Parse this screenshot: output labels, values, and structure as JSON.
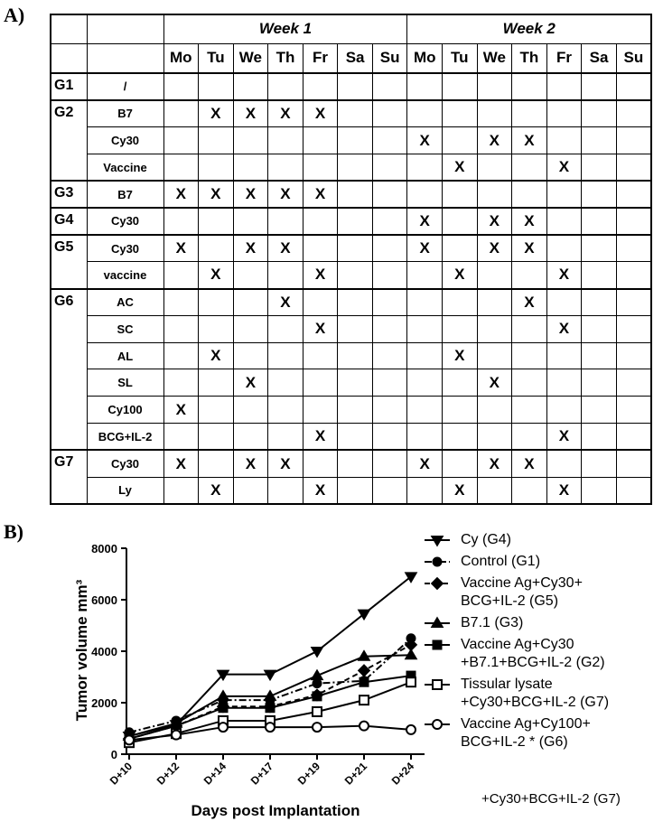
{
  "panel_labels": [
    "A)",
    "B)"
  ],
  "table": {
    "weeks": [
      {
        "label": "Week 1",
        "days": [
          "Mo",
          "Tu",
          "We",
          "Th",
          "Fr",
          "Sa",
          "Su"
        ]
      },
      {
        "label": "Week 2",
        "days": [
          "Mo",
          "Tu",
          "We",
          "Th",
          "Fr",
          "Sa",
          "Su"
        ]
      }
    ],
    "mark_symbol": "X",
    "groups": [
      {
        "label": "G1",
        "rows": [
          {
            "treatment": "/",
            "marks": [
              [],
              []
            ]
          }
        ]
      },
      {
        "label": "G2",
        "rows": [
          {
            "treatment": "B7",
            "marks": [
              [
                1,
                2,
                3,
                4
              ],
              []
            ]
          },
          {
            "treatment": "Cy30",
            "marks": [
              [],
              [
                0,
                2,
                3
              ]
            ]
          },
          {
            "treatment": "Vaccine",
            "marks": [
              [],
              [
                1,
                4
              ]
            ]
          }
        ]
      },
      {
        "label": "G3",
        "rows": [
          {
            "treatment": "B7",
            "marks": [
              [
                0,
                1,
                2,
                3,
                4
              ],
              []
            ]
          }
        ]
      },
      {
        "label": "G4",
        "rows": [
          {
            "treatment": "Cy30",
            "marks": [
              [],
              [
                0,
                2,
                3
              ]
            ]
          }
        ]
      },
      {
        "label": "G5",
        "rows": [
          {
            "treatment": "Cy30",
            "marks": [
              [
                0,
                2,
                3
              ],
              [
                0,
                2,
                3
              ]
            ]
          },
          {
            "treatment": "vaccine",
            "marks": [
              [
                1,
                4
              ],
              [
                1,
                4
              ]
            ]
          }
        ]
      },
      {
        "label": "G6",
        "rows": [
          {
            "treatment": "AC",
            "marks": [
              [
                3
              ],
              [
                3
              ]
            ]
          },
          {
            "treatment": "SC",
            "marks": [
              [
                4
              ],
              [
                4
              ]
            ]
          },
          {
            "treatment": "AL",
            "marks": [
              [
                1
              ],
              [
                1
              ]
            ]
          },
          {
            "treatment": "SL",
            "marks": [
              [
                2
              ],
              [
                2
              ]
            ]
          },
          {
            "treatment": "Cy100",
            "marks": [
              [
                0
              ],
              []
            ]
          },
          {
            "treatment": "BCG+IL-2",
            "marks": [
              [
                4
              ],
              [
                4
              ]
            ]
          }
        ]
      },
      {
        "label": "G7",
        "rows": [
          {
            "treatment": "Cy30",
            "marks": [
              [
                0,
                2,
                3
              ],
              [
                0,
                2,
                3
              ]
            ]
          },
          {
            "treatment": "Ly",
            "marks": [
              [
                1,
                4
              ],
              [
                1,
                4
              ]
            ]
          }
        ]
      }
    ]
  },
  "chart_data": {
    "type": "line",
    "x_label": "Days post Implantation",
    "y_label": "Tumor volume mm³",
    "categories": [
      "D+10",
      "D+12",
      "D+14",
      "D+17",
      "D+19",
      "D+21",
      "D+24"
    ],
    "ylim": [
      0,
      8000
    ],
    "yticks": [
      0,
      2000,
      4000,
      6000,
      8000
    ],
    "annotation": "+Cy30+BCG+IL-2 (G7)",
    "series": [
      {
        "name": "Cy (G4)",
        "color": "#000000",
        "marker": "triangle-down",
        "dash": "solid",
        "values": [
          700,
          1150,
          3100,
          3100,
          4000,
          5450,
          6900
        ]
      },
      {
        "name": "Control (G1)",
        "color": "#000000",
        "marker": "circle",
        "dash": "dashdot",
        "values": [
          850,
          1300,
          2100,
          2100,
          2750,
          2850,
          4500
        ]
      },
      {
        "name": "Vaccine Ag+Cy30+\nBCG+IL-2 (G5)",
        "color": "#000000",
        "marker": "diamond",
        "dash": "dashed",
        "values": [
          600,
          1100,
          1850,
          1850,
          2300,
          3250,
          4250
        ]
      },
      {
        "name": "B7.1 (G3)",
        "color": "#000000",
        "marker": "triangle-up",
        "dash": "solid",
        "values": [
          700,
          1200,
          2250,
          2250,
          3050,
          3800,
          3850
        ]
      },
      {
        "name": "Vaccine Ag+Cy30\n+B7.1+BCG+IL-2 (G2)",
        "color": "#000000",
        "marker": "square",
        "dash": "solid",
        "values": [
          600,
          1100,
          1800,
          1800,
          2250,
          2800,
          3050
        ]
      },
      {
        "name": "Tissular lysate\n+Cy30+BCG+IL-2 (G7)",
        "color": "#000000",
        "marker": "square-open",
        "dash": "solid",
        "values": [
          450,
          800,
          1300,
          1300,
          1650,
          2100,
          2800
        ]
      },
      {
        "name": "Vaccine Ag+Cy100+\nBCG+IL-2 * (G6)",
        "color": "#000000",
        "marker": "circle-open",
        "dash": "solid",
        "values": [
          550,
          750,
          1050,
          1050,
          1050,
          1100,
          950
        ]
      }
    ]
  }
}
